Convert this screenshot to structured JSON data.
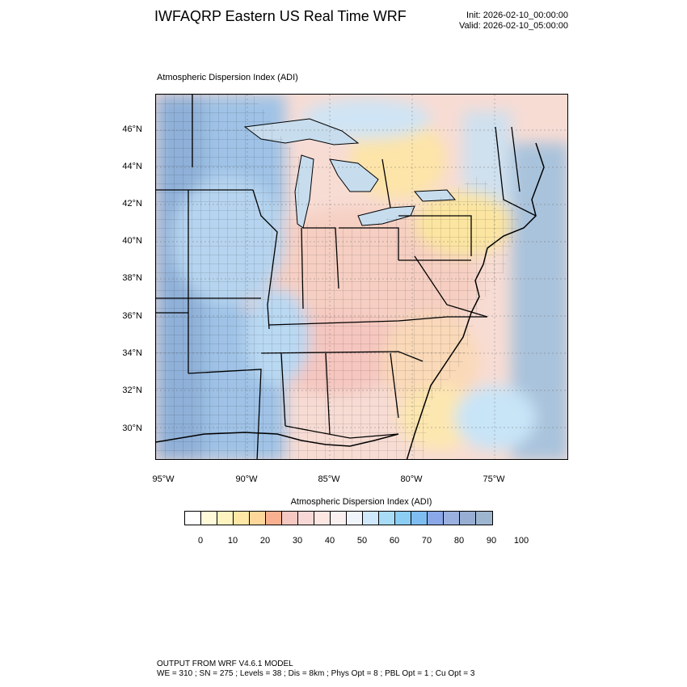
{
  "header": {
    "title": "IWFAQRP Eastern US Real Time WRF",
    "init": "Init: 2026-02-10_00:00:00",
    "valid": "Valid: 2026-02-10_05:00:00"
  },
  "map": {
    "field_label": "Atmospheric Dispersion Index   (ADI)",
    "lat_labels": [
      "46°N",
      "44°N",
      "42°N",
      "40°N",
      "38°N",
      "36°N",
      "34°N",
      "32°N",
      "30°N"
    ],
    "lon_labels": [
      "95°W",
      "90°W",
      "85°W",
      "80°W",
      "75°W"
    ]
  },
  "colorbar": {
    "title": "Atmospheric Dispersion Index  (ADI)",
    "labels": [
      "0",
      "10",
      "20",
      "30",
      "40",
      "50",
      "60",
      "70",
      "80",
      "90",
      "100"
    ],
    "colors": [
      "#ffffff",
      "#fffbd8",
      "#fff3c0",
      "#ffe7a6",
      "#ffd79b",
      "#f8b08f",
      "#f5c8c2",
      "#f7d8d6",
      "#fbe6e2",
      "#fbf0f0",
      "#f0f4fb",
      "#cfe8fb",
      "#a8dcf6",
      "#8bcdf3",
      "#7fbdf0",
      "#8aa8e8",
      "#9ab0de",
      "#97aed2",
      "#9db5cf"
    ]
  },
  "footer": {
    "line1": "OUTPUT FROM WRF V4.6.1 MODEL",
    "line2": "WE = 310 ; SN = 275 ; Levels = 38 ; Dis = 8km ; Phys Opt = 8 ; PBL Opt = 1 ; Cu Opt = 3"
  }
}
